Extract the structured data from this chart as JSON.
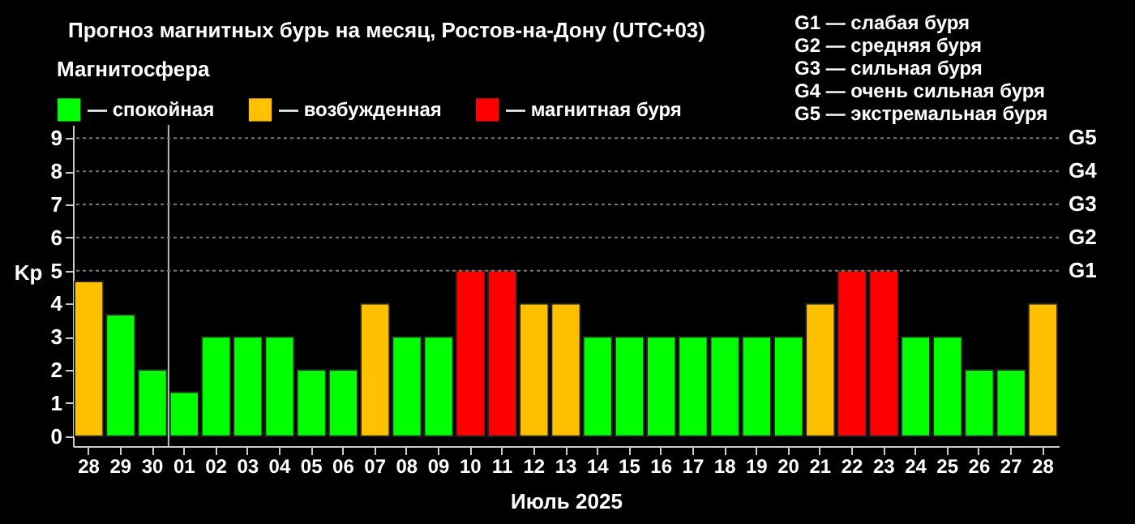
{
  "chart_data": {
    "type": "bar",
    "title": "Прогноз магнитных бурь на месяц, Ростов-на-Дону (UTC+03)",
    "xlabel": "Июль 2025",
    "ylabel": "Kp",
    "legend_title": "Магнитосфера",
    "annotations": [
      "G1 — слабая буря",
      "G2 — средняя буря",
      "G3 — сильная буря",
      "G4 — очень сильная буря",
      "G5 — экстремальная буря"
    ],
    "categories": [
      "28",
      "29",
      "30",
      "01",
      "02",
      "03",
      "04",
      "05",
      "06",
      "07",
      "08",
      "09",
      "10",
      "11",
      "12",
      "13",
      "14",
      "15",
      "16",
      "17",
      "18",
      "19",
      "20",
      "21",
      "22",
      "23",
      "24",
      "25",
      "26",
      "27",
      "28"
    ],
    "series": [
      {
        "name": "— спокойная",
        "color": "#00ff00",
        "values": [
          null,
          3.67,
          2,
          1.33,
          3,
          3,
          3,
          2,
          2,
          null,
          3,
          3,
          null,
          null,
          null,
          null,
          3,
          3,
          3,
          3,
          3,
          3,
          3,
          null,
          null,
          null,
          3,
          3,
          2,
          2,
          null
        ]
      },
      {
        "name": "— возбужденная",
        "color": "#ffc000",
        "values": [
          4.67,
          null,
          null,
          null,
          null,
          null,
          null,
          null,
          null,
          4,
          null,
          null,
          null,
          null,
          4,
          4,
          null,
          null,
          null,
          null,
          null,
          null,
          null,
          4,
          null,
          null,
          null,
          null,
          null,
          null,
          4
        ]
      },
      {
        "name": "— магнитная буря",
        "color": "#ff0000",
        "values": [
          null,
          null,
          null,
          null,
          null,
          null,
          null,
          null,
          null,
          null,
          null,
          null,
          5,
          5,
          null,
          null,
          null,
          null,
          null,
          null,
          null,
          null,
          null,
          null,
          5,
          5,
          null,
          null,
          null,
          null,
          null
        ]
      }
    ],
    "ylim": [
      -0.3,
      9.4
    ],
    "yticks": [
      0,
      1,
      2,
      3,
      4,
      5,
      6,
      7,
      8,
      9
    ],
    "ref_lines": [
      {
        "axis": "x",
        "value": "01"
      },
      {
        "axis": "y",
        "value": 5,
        "label": "G1",
        "line_style": "dotted"
      },
      {
        "axis": "y",
        "value": 6,
        "label": "G2",
        "line_style": "dotted"
      },
      {
        "axis": "y",
        "value": 7,
        "label": "G3",
        "line_style": "dotted"
      },
      {
        "axis": "y",
        "value": 8,
        "label": "G4",
        "line_style": "dotted"
      },
      {
        "axis": "y",
        "value": 9,
        "label": "G5",
        "line_style": "dotted"
      }
    ],
    "legend": "top left"
  }
}
